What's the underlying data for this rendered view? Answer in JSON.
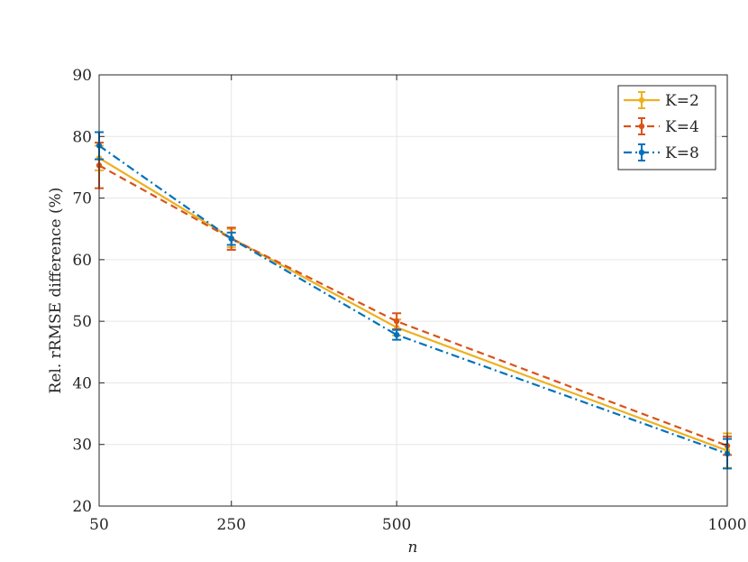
{
  "chart_data": {
    "type": "line",
    "title": "",
    "xlabel": "n",
    "ylabel": "Rel. rRMSE difference (%)",
    "x": [
      50,
      250,
      500,
      1000
    ],
    "x_tick_labels": [
      "50",
      "250",
      "500",
      "1000"
    ],
    "xlim": [
      50,
      1000
    ],
    "ylim": [
      20,
      90
    ],
    "y_ticks": [
      20,
      30,
      40,
      50,
      60,
      70,
      80,
      90
    ],
    "grid": true,
    "legend_position": "top-right",
    "series": [
      {
        "name": "K=2",
        "color": "#EDB120",
        "line_style": "solid",
        "values": [
          76.5,
          63.5,
          49.0,
          29.0
        ],
        "error": [
          2.0,
          1.5,
          1.3,
          2.8
        ]
      },
      {
        "name": "K=4",
        "color": "#D95319",
        "line_style": "dashed",
        "values": [
          75.3,
          63.4,
          50.0,
          29.8
        ],
        "error": [
          3.7,
          1.8,
          1.3,
          1.5
        ]
      },
      {
        "name": "K=8",
        "color": "#0072BD",
        "line_style": "dash-dot",
        "values": [
          78.5,
          63.4,
          47.8,
          28.5
        ],
        "error": [
          2.2,
          1.0,
          0.8,
          2.4
        ]
      }
    ]
  }
}
